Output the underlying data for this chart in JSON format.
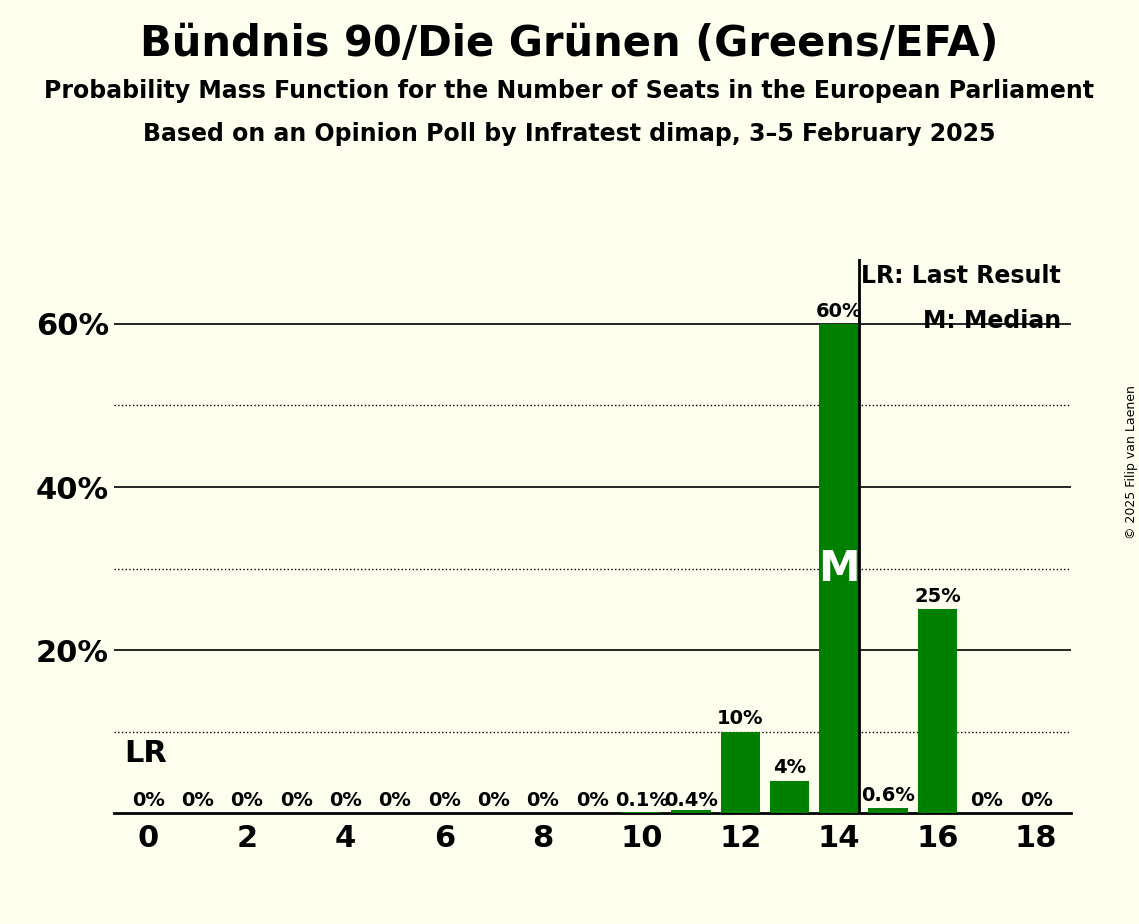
{
  "title": "Bündnis 90/Die Grünen (Greens/EFA)",
  "subtitle1": "Probability Mass Function for the Number of Seats in the European Parliament",
  "subtitle2": "Based on an Opinion Poll by Infratest dimap, 3–5 February 2025",
  "copyright": "© 2025 Filip van Laenen",
  "seats": [
    0,
    1,
    2,
    3,
    4,
    5,
    6,
    7,
    8,
    9,
    10,
    11,
    12,
    13,
    14,
    15,
    16,
    17,
    18
  ],
  "probabilities": [
    0.0,
    0.0,
    0.0,
    0.0,
    0.0,
    0.0,
    0.0,
    0.0,
    0.0,
    0.0,
    0.001,
    0.004,
    0.1,
    0.04,
    0.6,
    0.006,
    0.25,
    0.0,
    0.0
  ],
  "prob_labels": [
    "0%",
    "0%",
    "0%",
    "0%",
    "0%",
    "0%",
    "0%",
    "0%",
    "0%",
    "0%",
    "0.1%",
    "0.4%",
    "10%",
    "4%",
    "60%",
    "0.6%",
    "25%",
    "0%",
    "0%"
  ],
  "bar_color": "#008000",
  "background_color": "#FFFFF0",
  "last_result_seat": 14,
  "median_seat": 14,
  "ylim_max": 0.68,
  "major_yticks": [
    0.2,
    0.4,
    0.6
  ],
  "major_ytick_labels": [
    "20%",
    "40%",
    "60%"
  ],
  "dotted_yticks": [
    0.1,
    0.3,
    0.5
  ],
  "xticks": [
    0,
    2,
    4,
    6,
    8,
    10,
    12,
    14,
    16,
    18
  ],
  "legend_lr": "LR: Last Result",
  "legend_m": "M: Median",
  "lr_label": "LR",
  "median_label": "M",
  "title_fontsize": 30,
  "subtitle_fontsize": 17,
  "ytick_fontsize": 22,
  "xtick_fontsize": 22,
  "label_fontsize": 14,
  "lr_fontsize": 22,
  "legend_fontsize": 17,
  "median_fontsize": 30,
  "copyright_fontsize": 9
}
